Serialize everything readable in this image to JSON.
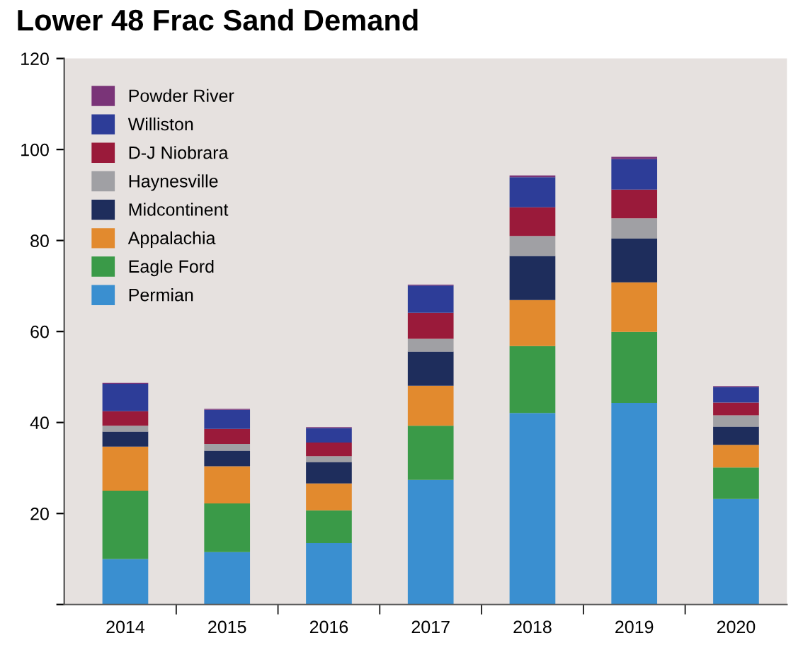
{
  "chart_data": {
    "type": "bar",
    "stacked": true,
    "title": "Lower 48 Frac Sand Demand",
    "categories": [
      "2014",
      "2015",
      "2016",
      "2017",
      "2018",
      "2019",
      "2020"
    ],
    "series": [
      {
        "name": "Permian",
        "color": "#3a8fd0",
        "values": [
          10.0,
          11.5,
          13.5,
          27.4,
          42.1,
          44.3,
          23.2
        ]
      },
      {
        "name": "Eagle Ford",
        "color": "#3a9a48",
        "values": [
          15.0,
          10.7,
          7.2,
          11.9,
          14.7,
          15.6,
          6.9
        ]
      },
      {
        "name": "Appalachia",
        "color": "#e28a2e",
        "values": [
          9.7,
          8.2,
          5.9,
          8.8,
          10.1,
          10.9,
          5.0
        ]
      },
      {
        "name": "Midcontinent",
        "color": "#1e2d5c",
        "values": [
          3.3,
          3.4,
          4.7,
          7.5,
          9.7,
          9.6,
          4.0
        ]
      },
      {
        "name": "Haynesville",
        "color": "#a0a0a4",
        "values": [
          1.3,
          1.5,
          1.3,
          2.8,
          4.4,
          4.5,
          2.5
        ]
      },
      {
        "name": "D-J Niobrara",
        "color": "#9a1a3a",
        "values": [
          3.2,
          3.3,
          3.0,
          5.7,
          6.3,
          6.3,
          2.8
        ]
      },
      {
        "name": "Williston",
        "color": "#2d3d98",
        "values": [
          6.0,
          4.2,
          3.2,
          6.0,
          6.6,
          6.7,
          3.4
        ]
      },
      {
        "name": "Powder River",
        "color": "#7a3478",
        "values": [
          0.2,
          0.2,
          0.2,
          0.2,
          0.4,
          0.5,
          0.2
        ]
      }
    ],
    "ylim": [
      0,
      120
    ],
    "yticks": [
      {
        "value": 0,
        "label": null
      },
      20,
      40,
      60,
      80,
      100,
      120
    ],
    "legend": "top left",
    "grid": false
  }
}
